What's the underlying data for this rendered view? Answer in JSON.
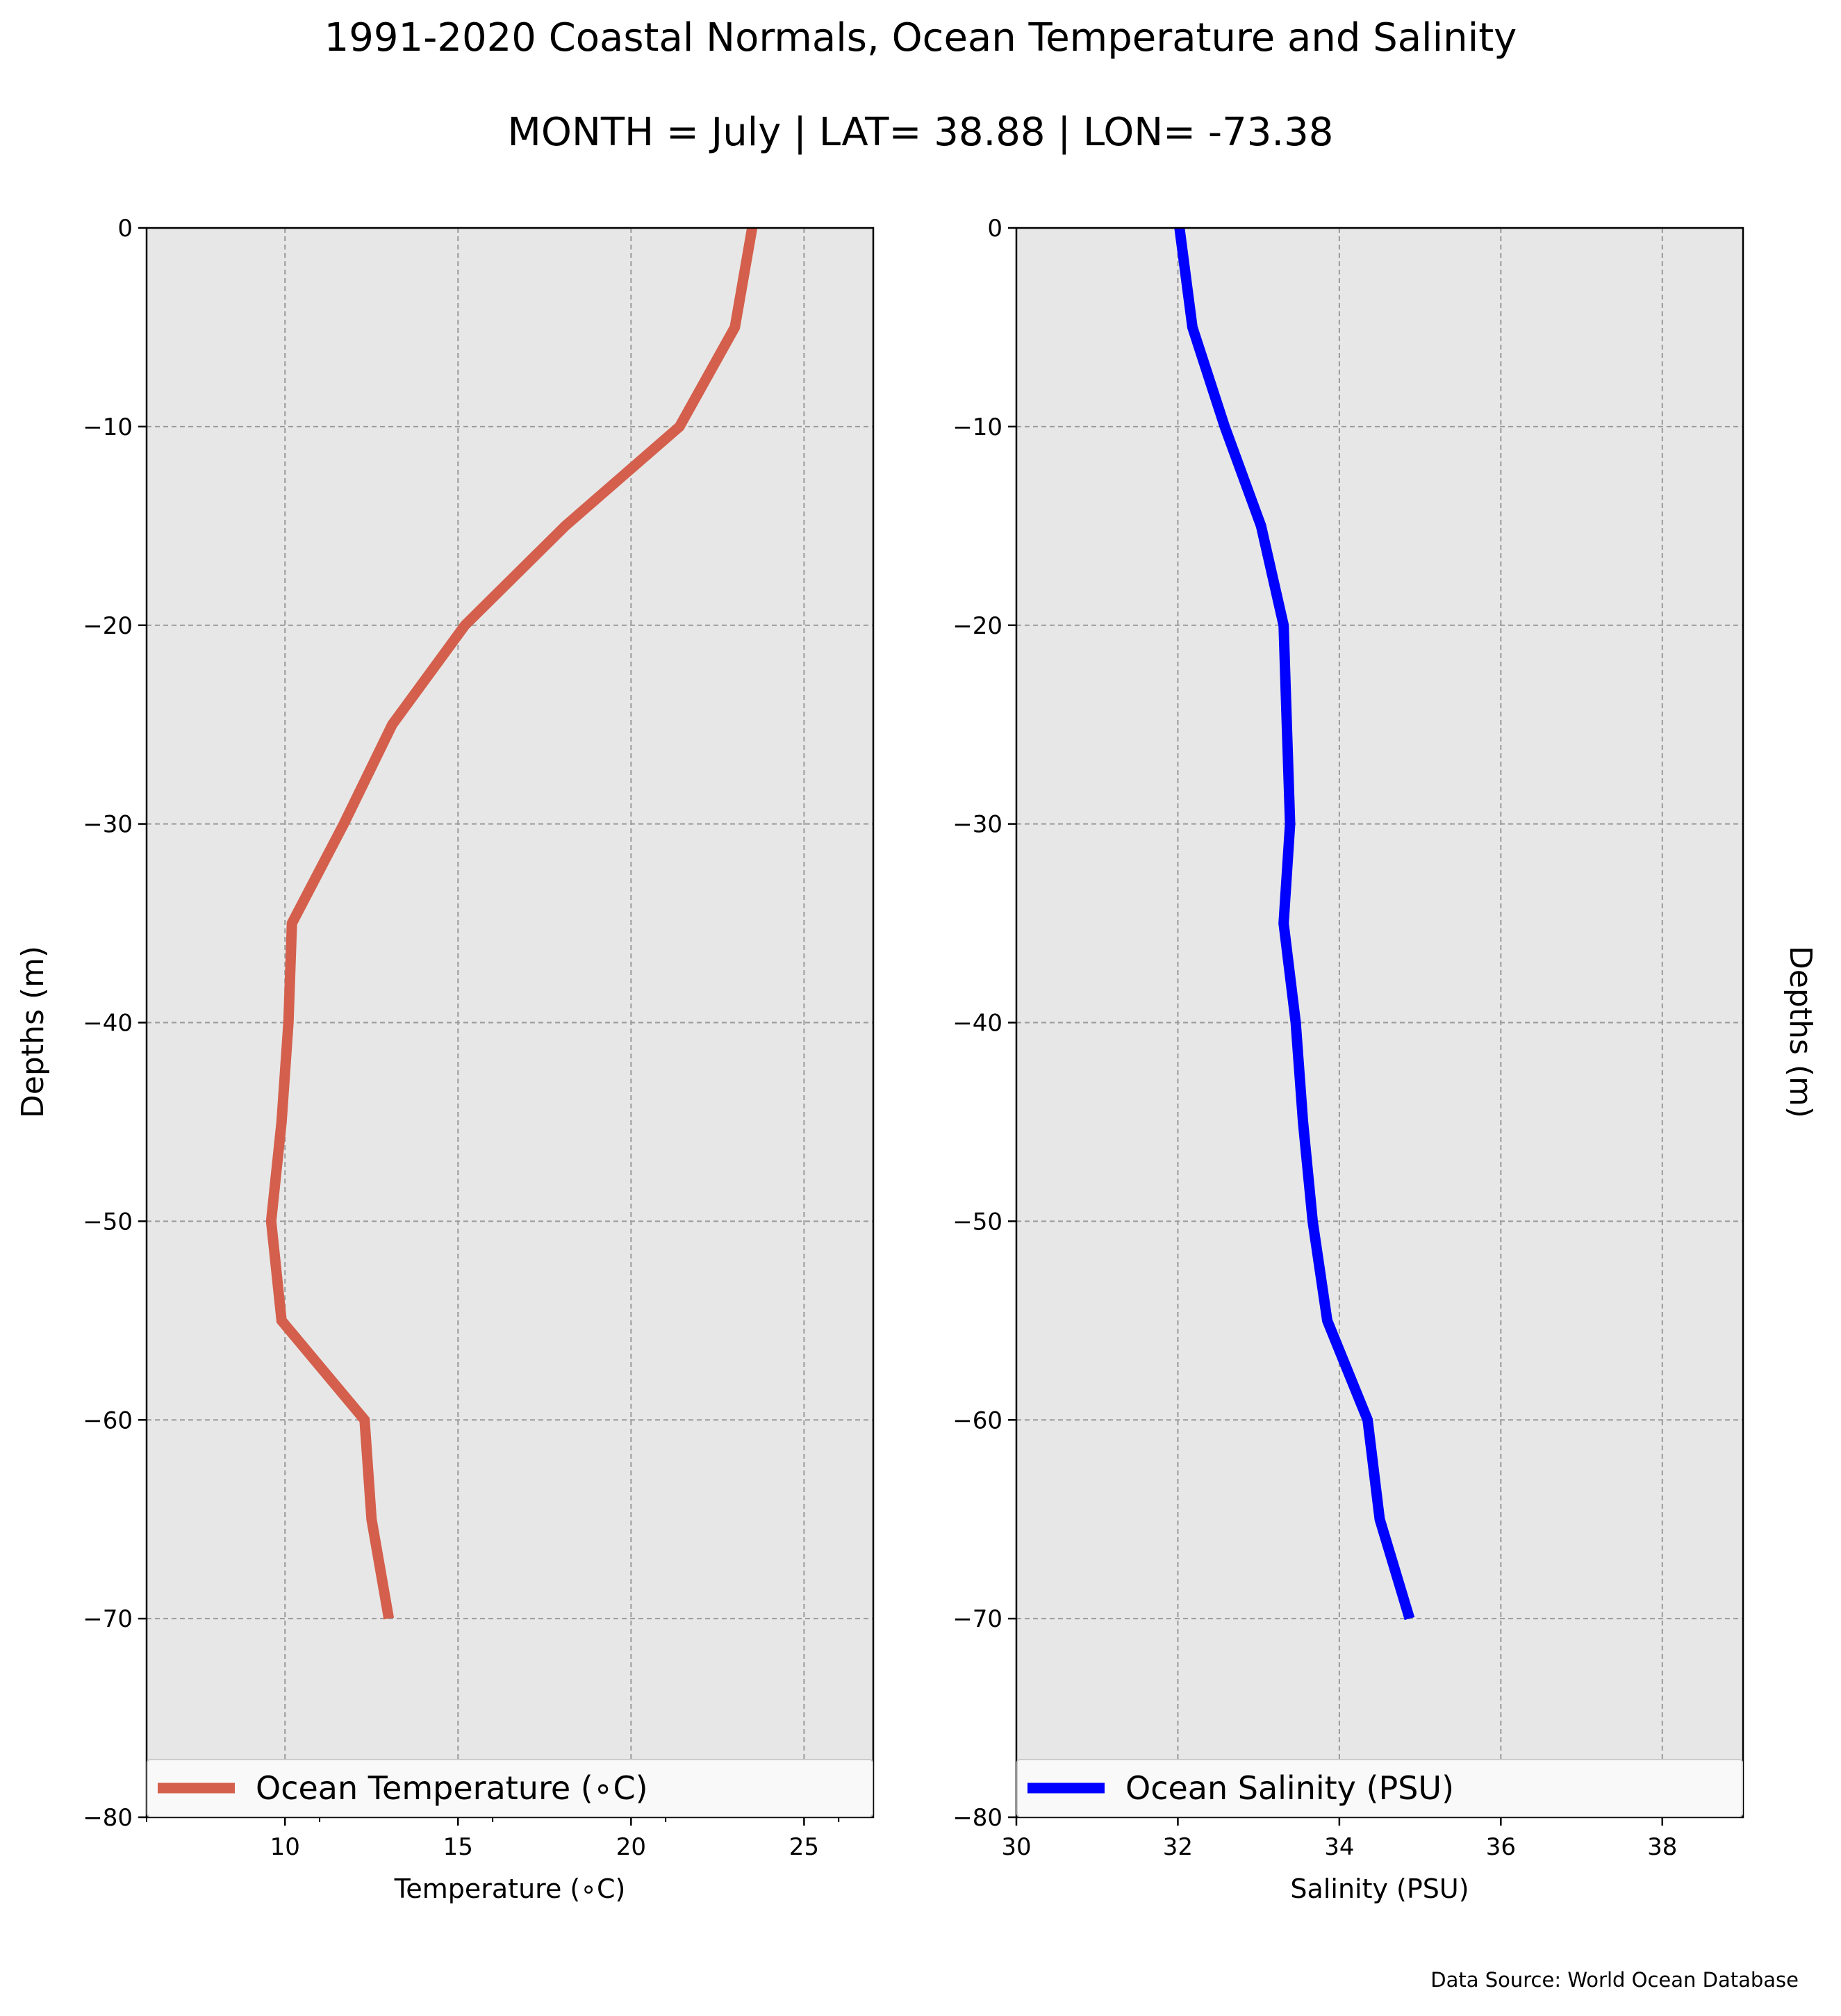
{
  "title": "1991-2020 Coastal Normals, Ocean Temperature and Salinity",
  "subtitle": "MONTH = July | LAT= 38.88 | LON= -73.38",
  "source_note": "Data Source: World Ocean Database",
  "chart_data": [
    {
      "type": "line",
      "xlabel": "Temperature ($^\\circ$C)",
      "xlabel_display": "Temperature (∘C)",
      "ylabel": "Depths (m)",
      "xlim": [
        6,
        27
      ],
      "ylim": [
        -80,
        0
      ],
      "xticks": [
        10,
        15,
        20,
        25
      ],
      "xtick_labels": [
        "10",
        "15",
        "20",
        "25"
      ],
      "xminor_ticks": [
        6,
        11,
        16,
        21,
        26
      ],
      "yticks": [
        0,
        -10,
        -20,
        -30,
        -40,
        -50,
        -60,
        -70,
        -80
      ],
      "ytick_labels": [
        "0",
        "−10",
        "−20",
        "−30",
        "−40",
        "−50",
        "−60",
        "−70",
        "−80"
      ],
      "grid": true,
      "legend_position": "lower-center",
      "series": [
        {
          "name": "Ocean Temperature (∘C)",
          "color": "#d45f4c",
          "x": [
            23.5,
            23.0,
            21.4,
            18.1,
            15.2,
            13.1,
            11.7,
            10.2,
            10.1,
            9.9,
            9.6,
            9.9,
            12.3,
            12.5,
            13.0
          ],
          "y": [
            0,
            -5,
            -10,
            -15,
            -20,
            -25,
            -30,
            -35,
            -40,
            -45,
            -50,
            -55,
            -60,
            -65,
            -70
          ]
        }
      ]
    },
    {
      "type": "line",
      "xlabel": "Salinity (PSU)",
      "ylabel": "Depths (m)",
      "xlim": [
        30,
        39
      ],
      "ylim": [
        -80,
        0
      ],
      "xticks": [
        30,
        32,
        34,
        36,
        38
      ],
      "xtick_labels": [
        "30",
        "32",
        "34",
        "36",
        "38"
      ],
      "yticks": [
        0,
        -10,
        -20,
        -30,
        -40,
        -50,
        -60,
        -70,
        -80
      ],
      "ytick_labels": [
        "0",
        "−10",
        "−20",
        "−30",
        "−40",
        "−50",
        "−60",
        "−70",
        "−80"
      ],
      "grid": true,
      "legend_position": "lower-center",
      "series": [
        {
          "name": "Ocean Salinity (PSU)",
          "color": "#0000ff",
          "x": [
            32.02,
            32.18,
            32.58,
            33.03,
            33.31,
            33.35,
            33.39,
            33.31,
            33.46,
            33.55,
            33.67,
            33.85,
            34.35,
            34.5,
            34.87
          ],
          "y": [
            0,
            -5,
            -10,
            -15,
            -20,
            -25,
            -30,
            -35,
            -40,
            -45,
            -50,
            -55,
            -60,
            -65,
            -70
          ]
        }
      ]
    }
  ]
}
